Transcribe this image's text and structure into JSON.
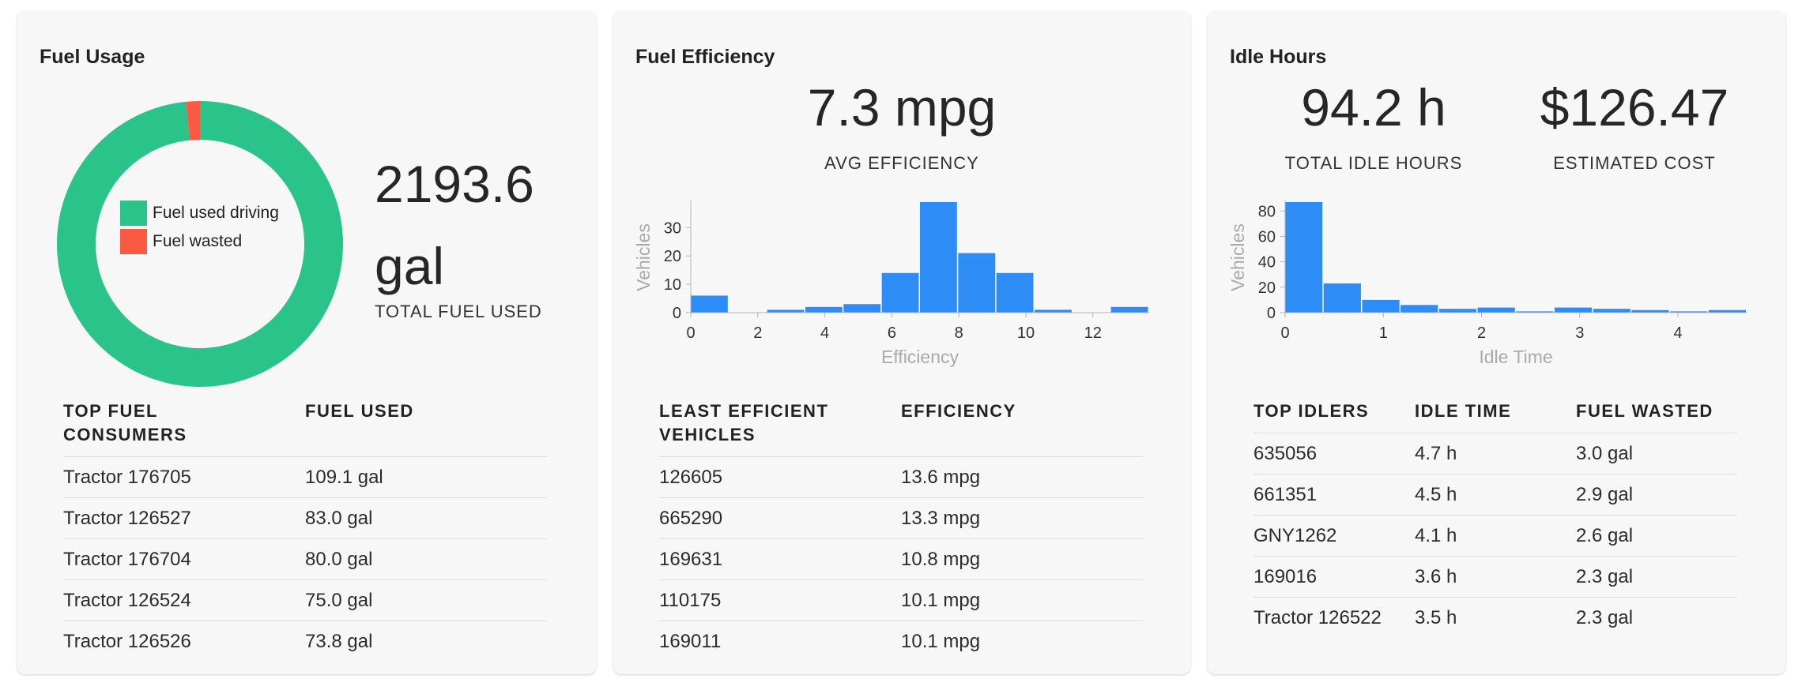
{
  "fuel_usage": {
    "title": "Fuel Usage",
    "total_value": "2193.6",
    "total_unit": "gal",
    "total_caption": "TOTAL FUEL USED",
    "legend": [
      {
        "label": "Fuel used driving",
        "color": "#2ac48a"
      },
      {
        "label": "Fuel wasted",
        "color": "#fb5a42"
      }
    ],
    "table": {
      "headers": [
        "TOP FUEL CONSUMERS",
        "FUEL USED"
      ],
      "rows": [
        [
          "Tractor 176705",
          "109.1 gal"
        ],
        [
          "Tractor 126527",
          "83.0 gal"
        ],
        [
          "Tractor 176704",
          "80.0 gal"
        ],
        [
          "Tractor 126524",
          "75.0 gal"
        ],
        [
          "Tractor 126526",
          "73.8 gal"
        ]
      ]
    }
  },
  "fuel_efficiency": {
    "title": "Fuel Efficiency",
    "avg_value": "7.3 mpg",
    "avg_caption": "AVG EFFICIENCY",
    "table": {
      "headers": [
        "LEAST EFFICIENT VEHICLES",
        "EFFICIENCY"
      ],
      "rows": [
        [
          "126605",
          "13.6 mpg"
        ],
        [
          "665290",
          "13.3 mpg"
        ],
        [
          "169631",
          "10.8 mpg"
        ],
        [
          "110175",
          "10.1 mpg"
        ],
        [
          "169011",
          "10.1 mpg"
        ]
      ]
    }
  },
  "idle_hours": {
    "title": "Idle Hours",
    "total_value": "94.2 h",
    "total_caption": "TOTAL IDLE HOURS",
    "cost_value": "$126.47",
    "cost_caption": "ESTIMATED COST",
    "table": {
      "headers": [
        "TOP IDLERS",
        "IDLE TIME",
        "FUEL WASTED"
      ],
      "rows": [
        [
          "635056",
          "4.7 h",
          "3.0 gal"
        ],
        [
          "661351",
          "4.5 h",
          "2.9 gal"
        ],
        [
          "GNY1262",
          "4.1 h",
          "2.6 gal"
        ],
        [
          "169016",
          "3.6 h",
          "2.3 gal"
        ],
        [
          "Tractor 126522",
          "3.5 h",
          "2.3 gal"
        ]
      ]
    }
  },
  "chart_data": [
    {
      "type": "pie",
      "categories": [
        "Fuel used driving",
        "Fuel wasted"
      ],
      "values": [
        2159.2,
        34.4
      ],
      "colors": [
        "#2ac48a",
        "#fb5a42"
      ],
      "donut": true,
      "legend": "center"
    },
    {
      "type": "bar",
      "xlabel": "Efficiency",
      "ylabel": "Vehicles",
      "bin_width": 1.14,
      "x_start": 0,
      "values": [
        6,
        0,
        1,
        2,
        3,
        14,
        39,
        21,
        14,
        1,
        0,
        2
      ],
      "xticks": [
        0,
        2,
        4,
        6,
        8,
        10,
        12
      ],
      "yticks": [
        0,
        10,
        20,
        30
      ],
      "xlim": [
        0,
        13.68
      ],
      "ylim": [
        0,
        39
      ],
      "color": "#2e8cf7"
    },
    {
      "type": "bar",
      "xlabel": "Idle Time",
      "ylabel": "Vehicles",
      "bin_width": 0.392,
      "x_start": 0,
      "values": [
        87,
        23,
        10,
        6,
        3,
        4,
        1,
        4,
        3,
        2,
        1,
        2
      ],
      "xticks": [
        0,
        1,
        2,
        3,
        4
      ],
      "yticks": [
        0,
        20,
        40,
        60,
        80
      ],
      "xlim": [
        0,
        4.7
      ],
      "ylim": [
        0,
        87
      ],
      "color": "#2e8cf7"
    }
  ]
}
